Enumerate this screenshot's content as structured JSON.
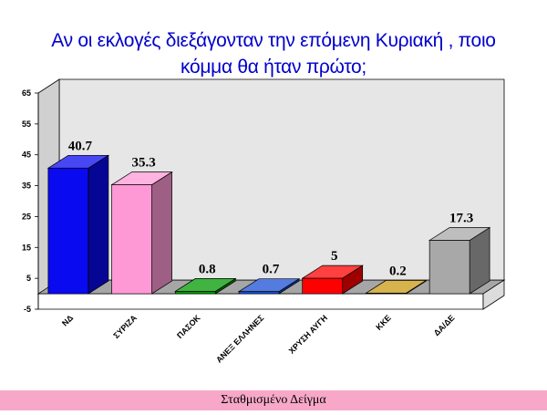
{
  "title_line1": "Αν οι εκλογές διεξάγονταν την επόμενη Κυριακή , ποιο",
  "title_line2": "κόμμα θα ήταν πρώτο;",
  "footer_text": "Σταθμισμένο Δείγμα",
  "colors": {
    "title": "#0000cc",
    "footer_bg": "#f7a8c8",
    "wall": "#e6e6e6",
    "floor": "#a6a6a6"
  },
  "chart_data": {
    "type": "bar",
    "title": "Αν οι εκλογές διεξάγονταν την επόμενη Κυριακή , ποιο κόμμα θα ήταν πρώτο;",
    "categories": [
      "ΝΔ",
      "ΣΥΡΙΖΑ",
      "ΠΑΣΟΚ",
      "ΑΝΕΞ ΕΛΛΗΝΕΣ",
      "ΧΡΥΣΗ ΑΥΓΗ",
      "ΚΚΕ",
      "ΔΑ/ΔΕ"
    ],
    "values": [
      40.7,
      35.3,
      0.8,
      0.7,
      5,
      0.2,
      17.3
    ],
    "value_labels": [
      "40.7",
      "35.3",
      "0.8",
      "0.7",
      "5",
      "0.2",
      "17.3"
    ],
    "bar_colors": [
      "#0a0af0",
      "#ff99d6",
      "#009900",
      "#1a4fd6",
      "#ff0000",
      "#c89a10",
      "#a8a8a8"
    ],
    "yticks": [
      -5,
      5,
      15,
      25,
      35,
      45,
      55,
      65
    ],
    "ytick_labels": [
      "-5",
      "5",
      "15",
      "25",
      "35",
      "45",
      "55",
      "65"
    ],
    "ylim": [
      -5,
      65
    ],
    "xlabel": "",
    "ylabel": "",
    "style": "3d",
    "grid": false,
    "legend": "none"
  }
}
